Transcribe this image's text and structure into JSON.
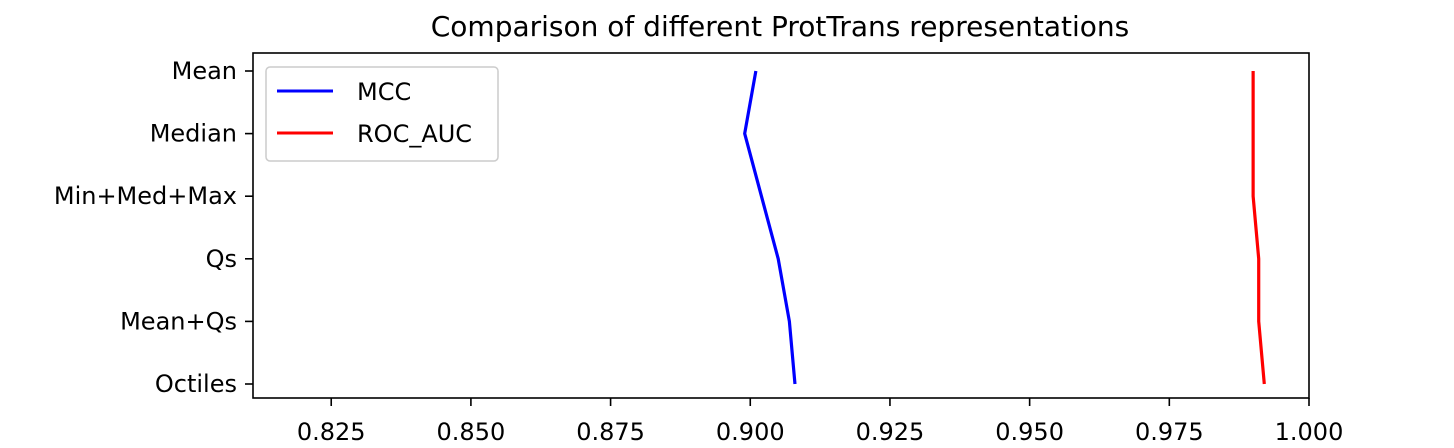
{
  "chart_data": {
    "type": "line",
    "orientation": "horizontal",
    "title": "Comparison of different ProtTrans representations",
    "xlabel": "",
    "ylabel": "",
    "categories": [
      "Mean",
      "Median",
      "Min+Med+Max",
      "Qs",
      "Mean+Qs",
      "Octiles"
    ],
    "xlim": [
      0.811,
      1.0
    ],
    "xticks": [
      "0.825",
      "0.850",
      "0.875",
      "0.900",
      "0.925",
      "0.950",
      "0.975",
      "1.000"
    ],
    "xtick_values": [
      0.825,
      0.85,
      0.875,
      0.9,
      0.925,
      0.95,
      0.975,
      1.0
    ],
    "grid": false,
    "legend_position": "upper-left",
    "series": [
      {
        "name": "MCC",
        "color": "#0000ff",
        "values": [
          0.901,
          0.899,
          0.902,
          0.905,
          0.907,
          0.908
        ]
      },
      {
        "name": "ROC_AUC",
        "color": "#ff0000",
        "values": [
          0.99,
          0.99,
          0.99,
          0.991,
          0.991,
          0.992
        ]
      }
    ]
  }
}
